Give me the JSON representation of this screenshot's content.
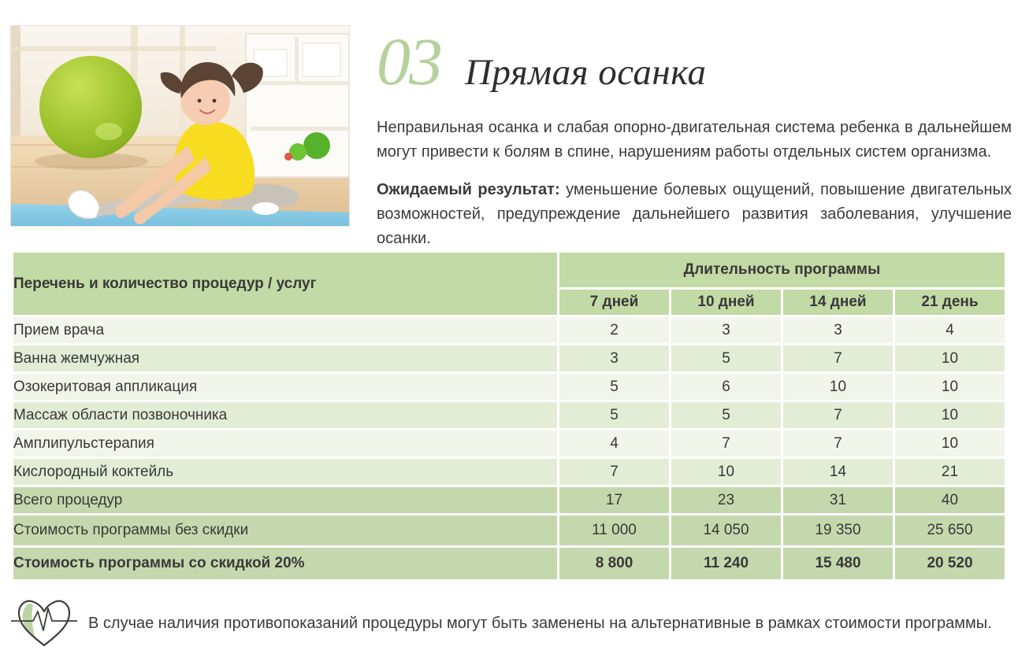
{
  "header": {
    "number": "03",
    "title": "Прямая осанка",
    "intro": "Неправильная осанка и слабая опорно-двигательная система ребенка в дальнейшем могут привести к болям в спине, нарушениям работы отдельных систем организма.",
    "expected_label": "Ожидаемый результат:",
    "expected_text": "уменьшение болевых ощущений, повышение двигательных возможностей, предупреждение дальнейшего развития заболевания, улучшение осанки."
  },
  "hero_image": {
    "name": "girl-stretching-photo",
    "description": "Девочка в желтой футболке делает растяжку на голубом коврике, зеленый фитбол на фоне"
  },
  "table": {
    "left_header": "Перечень и количество процедур / услуг",
    "group_header": "Длительность программы",
    "duration_headers": [
      "7 дней",
      "10 дней",
      "14 дней",
      "21 день"
    ],
    "rows": [
      {
        "label": "Прием врача",
        "values": [
          "2",
          "3",
          "3",
          "4"
        ]
      },
      {
        "label": "Ванна жемчужная",
        "values": [
          "3",
          "5",
          "7",
          "10"
        ]
      },
      {
        "label": "Озокеритовая аппликация",
        "values": [
          "5",
          "6",
          "10",
          "10"
        ]
      },
      {
        "label": "Массаж области позвоночника",
        "values": [
          "5",
          "5",
          "7",
          "10"
        ]
      },
      {
        "label": "Амплипульстерапия",
        "values": [
          "4",
          "7",
          "7",
          "10"
        ]
      },
      {
        "label": "Кислородный коктейль",
        "values": [
          "7",
          "10",
          "14",
          "21"
        ]
      }
    ],
    "summary_rows": [
      {
        "label": "Всего процедур",
        "values": [
          "17",
          "23",
          "31",
          "40"
        ],
        "bold": false
      },
      {
        "label": "Стоимость программы без скидки",
        "values": [
          "11 000",
          "14 050",
          "19 350",
          "25 650"
        ],
        "bold": false
      },
      {
        "label": "Стоимость программы со скидкой 20%",
        "values": [
          "8 800",
          "11 240",
          "15 480",
          "20 520"
        ],
        "bold": true
      }
    ]
  },
  "footer": {
    "icon": "heart-ecg-icon",
    "note": "В случае наличия противопоказаний процедуры могут быть заменены на альтернативные в рамках стоимости программы."
  },
  "colors": {
    "accent_green": "#b5d29d",
    "table_header_green": "#c2daa5",
    "row_light": "#f1f5ea",
    "row_alt": "#e3edd6",
    "row_summary": "#c5d8ad",
    "text_dark": "#3a3a39"
  }
}
